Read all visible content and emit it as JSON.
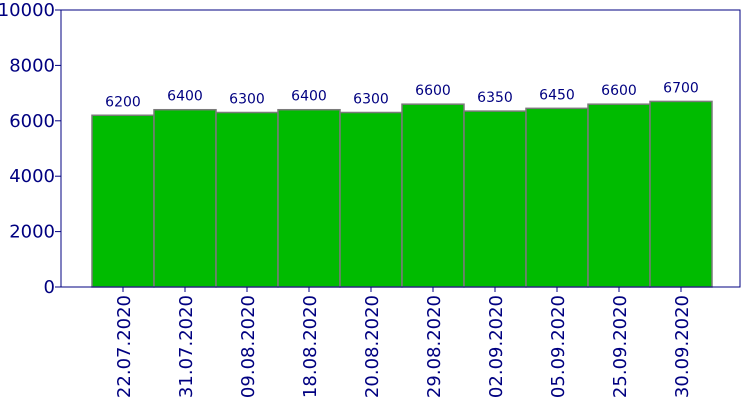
{
  "chart_data": {
    "type": "bar",
    "title": "",
    "xlabel": "",
    "ylabel": "",
    "categories": [
      "22.07.2020",
      "31.07.2020",
      "09.08.2020",
      "18.08.2020",
      "20.08.2020",
      "29.08.2020",
      "02.09.2020",
      "05.09.2020",
      "25.09.2020",
      "30.09.2020"
    ],
    "values": [
      6200,
      6400,
      6300,
      6400,
      6300,
      6600,
      6350,
      6450,
      6600,
      6700
    ],
    "ylim": [
      0,
      10000
    ],
    "yticks": [
      0,
      2000,
      4000,
      6000,
      8000,
      10000
    ],
    "grid": false,
    "legend": "none",
    "colors": {
      "bar": "#00bb00",
      "bar_edge": "#7a7a7a",
      "axis": "#000080",
      "text": "#000080",
      "background": "#ffffff"
    }
  }
}
